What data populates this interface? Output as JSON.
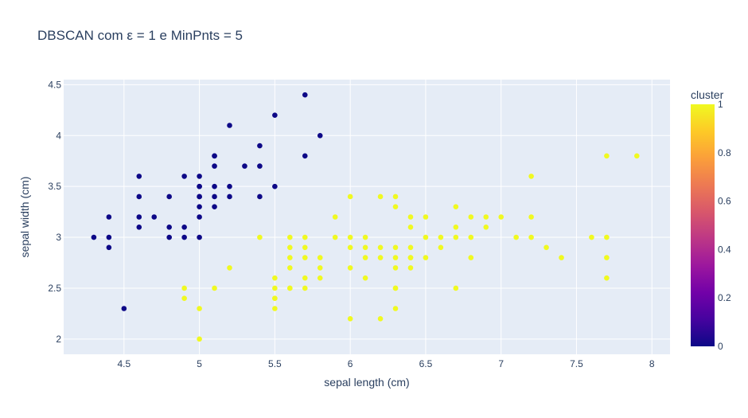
{
  "chart_data": {
    "type": "scatter",
    "title": "DBSCAN com ε = 1 e MinPnts = 5",
    "xlabel": "sepal length (cm)",
    "ylabel": "sepal width (cm)",
    "xlim": [
      4.1,
      8.12
    ],
    "ylim": [
      1.85,
      4.55
    ],
    "x_ticks": [
      4.5,
      5,
      5.5,
      6,
      6.5,
      7,
      7.5,
      8
    ],
    "x_tick_labels": [
      "4.5",
      "5",
      "5.5",
      "6",
      "6.5",
      "7",
      "7.5",
      "8"
    ],
    "y_ticks": [
      2,
      2.5,
      3,
      3.5,
      4,
      4.5
    ],
    "y_tick_labels": [
      "2",
      "2.5",
      "3",
      "3.5",
      "4",
      "4.5"
    ],
    "grid": true,
    "colorbar": {
      "title": "cluster",
      "range": [
        0,
        1
      ],
      "ticks": [
        0,
        0.2,
        0.4,
        0.6,
        0.8,
        1
      ],
      "tick_labels": [
        "0",
        "0.2",
        "0.4",
        "0.6",
        "0.8",
        "1"
      ],
      "colorscale": [
        "#0d0887",
        "#46039f",
        "#7201a8",
        "#9c179e",
        "#bd3786",
        "#d8576b",
        "#ed7953",
        "#fb9f3a",
        "#fdca26",
        "#f0f921"
      ]
    },
    "series": [
      {
        "cluster": 0,
        "color": "#0d0887",
        "x": [
          4.3,
          4.4,
          4.4,
          4.4,
          4.5,
          4.6,
          4.6,
          4.6,
          4.6,
          4.7,
          4.8,
          4.8,
          4.8,
          4.9,
          4.9,
          4.9,
          5.0,
          5.0,
          5.0,
          5.0,
          5.0,
          5.0,
          5.0,
          5.0,
          5.1,
          5.1,
          5.1,
          5.1,
          5.1,
          5.1,
          5.2,
          5.2,
          5.2,
          5.3,
          5.4,
          5.4,
          5.4,
          5.5,
          5.5,
          5.7,
          5.7,
          5.8
        ],
        "y": [
          3.0,
          2.9,
          3.0,
          3.2,
          2.3,
          3.1,
          3.2,
          3.4,
          3.6,
          3.2,
          3.0,
          3.1,
          3.4,
          3.0,
          3.1,
          3.6,
          3.0,
          3.2,
          3.3,
          3.4,
          3.5,
          3.6,
          3.4,
          3.5,
          3.3,
          3.4,
          3.5,
          3.7,
          3.8,
          3.8,
          3.4,
          3.5,
          4.1,
          3.7,
          3.4,
          3.7,
          3.9,
          3.5,
          4.2,
          3.8,
          4.4,
          4.0
        ]
      },
      {
        "cluster": 1,
        "color": "#f0f921",
        "x": [
          4.9,
          4.9,
          5.0,
          5.0,
          5.1,
          5.2,
          5.4,
          5.5,
          5.5,
          5.5,
          5.5,
          5.5,
          5.6,
          5.6,
          5.6,
          5.6,
          5.6,
          5.6,
          5.7,
          5.7,
          5.7,
          5.7,
          5.7,
          5.8,
          5.8,
          5.8,
          5.9,
          5.9,
          6.0,
          6.0,
          6.0,
          6.0,
          6.0,
          6.1,
          6.1,
          6.1,
          6.1,
          6.2,
          6.2,
          6.2,
          6.2,
          6.3,
          6.3,
          6.3,
          6.3,
          6.3,
          6.3,
          6.3,
          6.3,
          6.4,
          6.4,
          6.4,
          6.4,
          6.4,
          6.4,
          6.5,
          6.5,
          6.5,
          6.6,
          6.6,
          6.7,
          6.7,
          6.7,
          6.7,
          6.8,
          6.8,
          6.8,
          6.9,
          6.9,
          7.0,
          7.1,
          7.2,
          7.2,
          7.2,
          7.3,
          7.4,
          7.6,
          7.7,
          7.7,
          7.7,
          7.7,
          7.9
        ],
        "y": [
          2.4,
          2.5,
          2.0,
          2.3,
          2.5,
          2.7,
          3.0,
          2.3,
          2.4,
          2.5,
          2.6,
          2.4,
          2.5,
          2.7,
          2.8,
          2.9,
          3.0,
          2.5,
          2.5,
          2.6,
          2.8,
          2.9,
          3.0,
          2.6,
          2.7,
          2.8,
          3.0,
          3.2,
          2.2,
          2.7,
          2.9,
          3.0,
          3.4,
          2.6,
          2.8,
          2.9,
          3.0,
          2.2,
          2.8,
          2.9,
          3.4,
          2.3,
          2.5,
          2.7,
          2.8,
          2.9,
          3.3,
          3.4,
          2.5,
          2.7,
          2.8,
          2.9,
          3.1,
          3.2,
          2.8,
          2.8,
          3.0,
          3.2,
          2.9,
          3.0,
          2.5,
          3.0,
          3.1,
          3.3,
          2.8,
          3.0,
          3.2,
          3.1,
          3.2,
          3.2,
          3.0,
          3.0,
          3.2,
          3.6,
          2.9,
          2.8,
          3.0,
          2.6,
          2.8,
          3.0,
          3.8,
          3.8
        ]
      }
    ]
  }
}
